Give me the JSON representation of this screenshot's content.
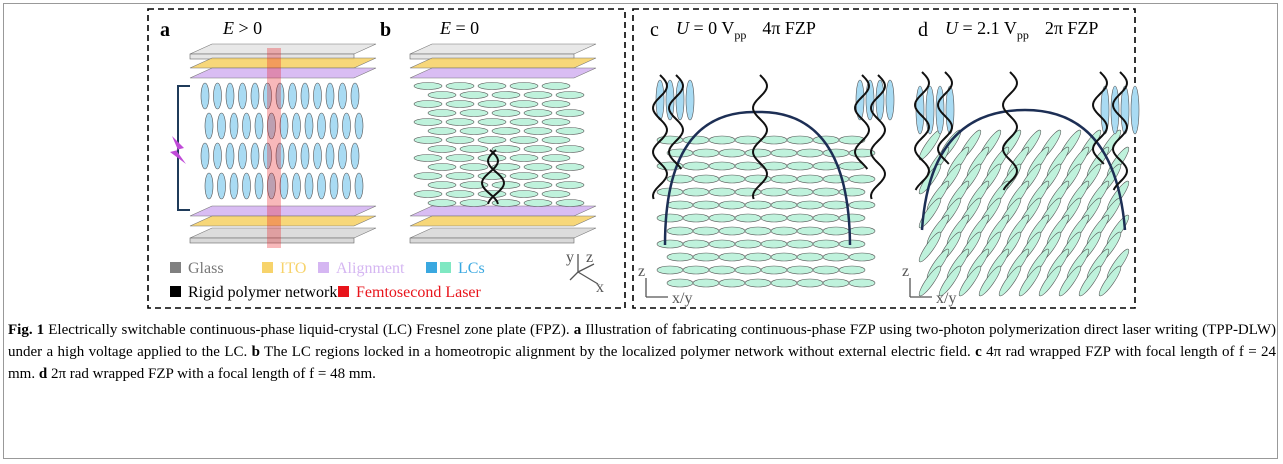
{
  "panels": [
    {
      "letter": "a",
      "field": {
        "var": "E",
        "rest": " > 0"
      }
    },
    {
      "letter": "b",
      "field": {
        "var": "E",
        "rest": " = 0"
      }
    },
    {
      "letter": "c",
      "field": {
        "var": "U",
        "rest": " = 0 V",
        "sub": "pp",
        "zone": "4π FZP"
      }
    },
    {
      "letter": "d",
      "field": {
        "var": "U",
        "rest": " = 2.1 V",
        "sub": "pp",
        "zone": "2π FZP"
      }
    }
  ],
  "legend": [
    {
      "label": "Glass",
      "color": "#808080"
    },
    {
      "label": "ITO",
      "color": "#f7d36b"
    },
    {
      "label": "Alignment",
      "color": "#d5b6f2"
    },
    {
      "label": "LCs",
      "color": "#3aa8e0",
      "color2": "#7fe8c2"
    },
    {
      "label": "Rigid polymer network",
      "color": "#000000"
    },
    {
      "label": "Femtosecond Laser",
      "color": "#e8141b"
    }
  ],
  "axes_ab": {
    "y": "y",
    "z": "z",
    "x": "x"
  },
  "axes_c": {
    "z": "z",
    "x": "x/y"
  },
  "axes_d": {
    "z": "z",
    "x": "x/y"
  },
  "caption": {
    "label": "Fig. 1",
    "intro": "Electrically switchable continuous-phase liquid-crystal (LC) Fresnel zone plate (FPZ).",
    "items": [
      {
        "marker": "a",
        "text": "Illustration of fabricating continuous-phase FZP using two-photon polymerization direct laser writing (TPP-DLW) under a high voltage applied to the LC."
      },
      {
        "marker": "b",
        "text": "The LC regions locked in a homeotropic alignment by the localized polymer network without external electric field."
      },
      {
        "marker": "c",
        "text": "4π rad wrapped FZP with focal length of f = 24 mm."
      },
      {
        "marker": "d",
        "text": "2π rad wrapped FZP with a focal length of f = 48 mm."
      }
    ]
  }
}
